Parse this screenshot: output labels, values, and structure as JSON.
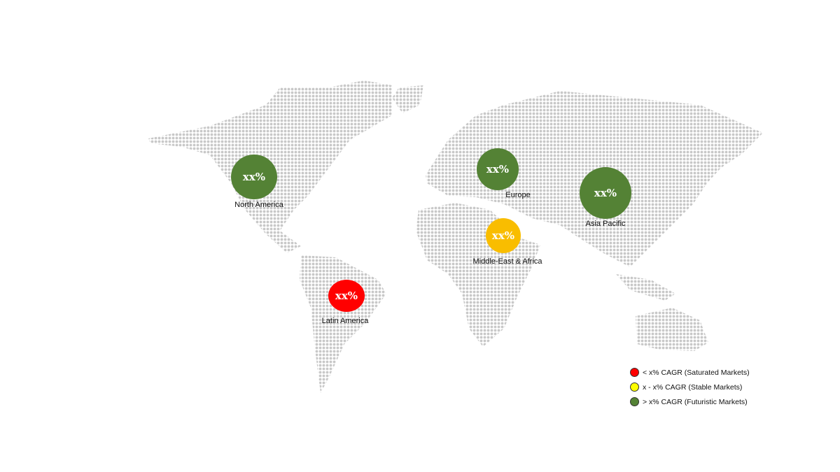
{
  "regions": [
    {
      "name": "North America",
      "value": "xx%",
      "color": "#548235"
    },
    {
      "name": "Europe",
      "value": "xx%",
      "color": "#548235"
    },
    {
      "name": "Asia Pacific",
      "value": "xx%",
      "color": "#548235"
    },
    {
      "name": "Middle-East & Africa",
      "value": "xx%",
      "color": "#f9bd00"
    },
    {
      "name": "Latin America",
      "value": "xx%",
      "color": "#ff0000"
    }
  ],
  "legend": [
    {
      "label": "< x% CAGR (Saturated Markets)",
      "color": "#ff0000"
    },
    {
      "label": "x - x% CAGR (Stable Markets)",
      "color": "#ffff00"
    },
    {
      "label": "> x% CAGR (Futuristic Markets)",
      "color": "#548235"
    }
  ],
  "map_dot_color": "#c8c8c8"
}
